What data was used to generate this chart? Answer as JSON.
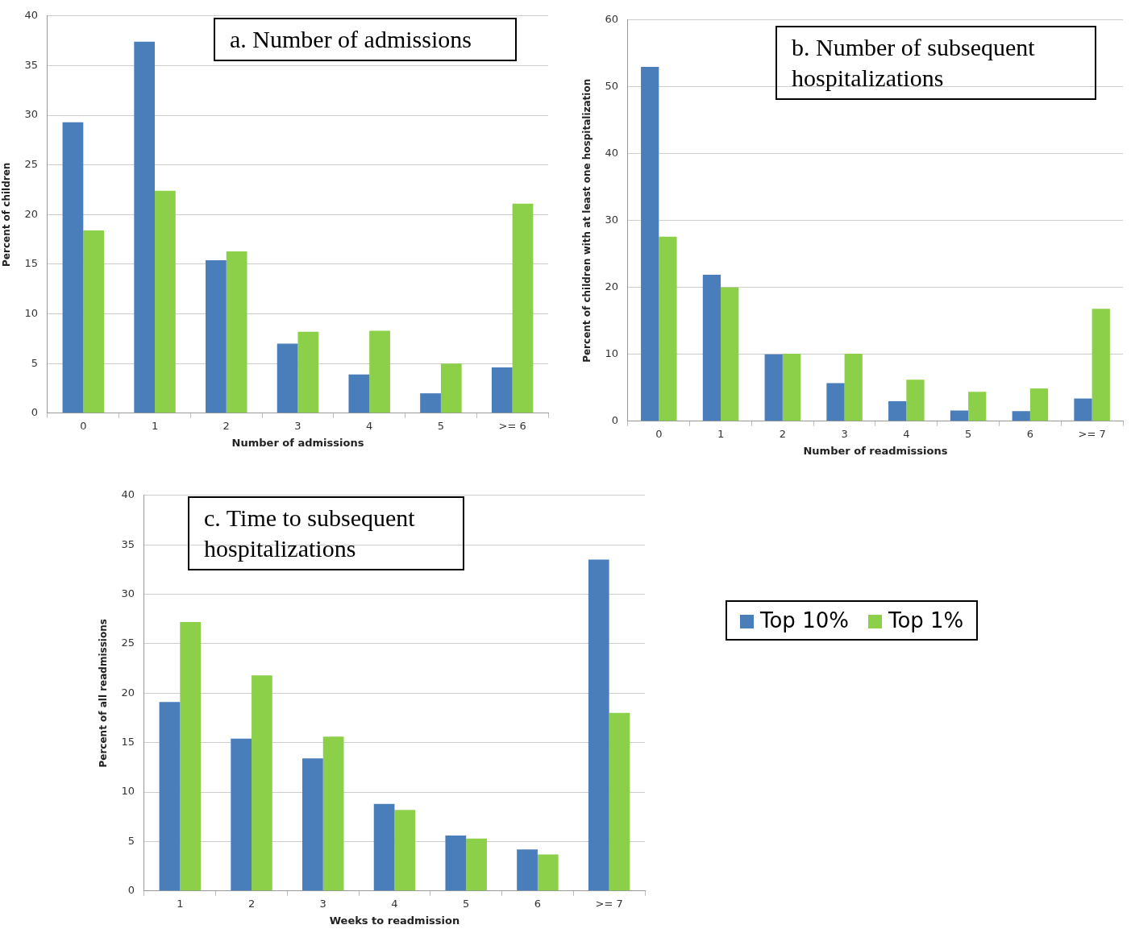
{
  "chart_data": [
    {
      "type": "bar",
      "title": "a. Number of admissions",
      "xlabel": "Number of admissions",
      "ylabel": "Percent of children",
      "categories": [
        "0",
        "1",
        "2",
        "3",
        "4",
        "5",
        ">= 6"
      ],
      "series": [
        {
          "color": "#4a7ebb",
          "values": [
            29.3,
            37.4,
            15.4,
            7.0,
            3.9,
            2.0,
            4.6
          ]
        },
        {
          "color": "#8cd04a",
          "values": [
            18.4,
            22.4,
            16.3,
            8.2,
            8.3,
            5.0,
            21.1
          ]
        }
      ],
      "ylim": [
        0,
        40
      ],
      "yticks": [
        0,
        5,
        10,
        15,
        20,
        25,
        30,
        35,
        40
      ],
      "grid": "y",
      "legend": false
    },
    {
      "type": "bar",
      "title": "b. Number of subsequent hospitalizations",
      "xlabel": "Number of readmissions",
      "ylabel": "Percent of children with at least one hospitalization",
      "categories": [
        "0",
        "1",
        "2",
        "3",
        "4",
        "5",
        "6",
        ">= 7"
      ],
      "series": [
        {
          "color": "#4a7ebb",
          "values": [
            53.0,
            21.9,
            10.0,
            5.7,
            3.0,
            1.6,
            1.5,
            3.4
          ]
        },
        {
          "color": "#8cd04a",
          "values": [
            27.6,
            20.0,
            10.1,
            10.1,
            6.2,
            4.4,
            4.9,
            16.8
          ]
        }
      ],
      "ylim": [
        0,
        60
      ],
      "yticks": [
        0,
        10,
        20,
        30,
        40,
        50,
        60
      ],
      "grid": "y",
      "legend": false
    },
    {
      "type": "bar",
      "title": "c. Time to subsequent hospitalizations",
      "xlabel": "Weeks to readmission",
      "ylabel": "Percent of all readmissions",
      "categories": [
        "1",
        "2",
        "3",
        "4",
        "5",
        "6",
        ">= 7"
      ],
      "series": [
        {
          "name": "Top 10%",
          "color": "#4a7ebb",
          "values": [
            19.1,
            15.4,
            13.4,
            8.8,
            5.6,
            4.2,
            33.5
          ]
        },
        {
          "name": "Top 1%",
          "color": "#8cd04a",
          "values": [
            27.2,
            21.8,
            15.6,
            8.2,
            5.3,
            3.7,
            18.0
          ]
        }
      ],
      "ylim": [
        0,
        40
      ],
      "yticks": [
        0,
        5,
        10,
        15,
        20,
        25,
        30,
        35,
        40
      ],
      "grid": "y",
      "legend": "right"
    }
  ]
}
